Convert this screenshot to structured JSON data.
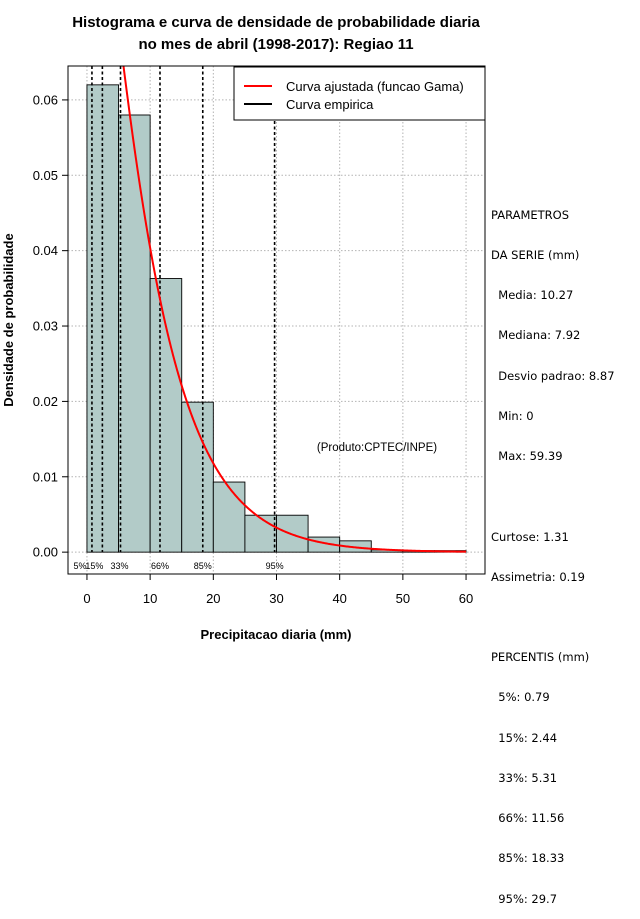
{
  "chart_data": {
    "type": "bar",
    "title_line1": "Histograma e curva de densidade de probabilidade diaria",
    "title_line2": "no mes de abril (1998-2017): Regiao 11",
    "xlabel": "Precipitacao diaria (mm)",
    "ylabel": "Densidade de probabilidade",
    "xlim": [
      -3,
      63
    ],
    "ylim": [
      -0.0029,
      0.0645
    ],
    "x_ticks": [
      0,
      10,
      20,
      30,
      40,
      50,
      60
    ],
    "x_tick_labels": [
      "0",
      "10",
      "20",
      "30",
      "40",
      "50",
      "60"
    ],
    "y_ticks": [
      0.0,
      0.01,
      0.02,
      0.03,
      0.04,
      0.05,
      0.06
    ],
    "y_tick_labels": [
      "0.00",
      "0.01",
      "0.02",
      "0.03",
      "0.04",
      "0.05",
      "0.06"
    ],
    "grid": true,
    "bins": [
      {
        "x0": 0,
        "x1": 5,
        "density": 0.062
      },
      {
        "x0": 5,
        "x1": 10,
        "density": 0.058
      },
      {
        "x0": 10,
        "x1": 15,
        "density": 0.0363
      },
      {
        "x0": 15,
        "x1": 20,
        "density": 0.0199
      },
      {
        "x0": 20,
        "x1": 25,
        "density": 0.0093
      },
      {
        "x0": 25,
        "x1": 30,
        "density": 0.0049
      },
      {
        "x0": 30,
        "x1": 35,
        "density": 0.0049
      },
      {
        "x0": 35,
        "x1": 40,
        "density": 0.002
      },
      {
        "x0": 40,
        "x1": 45,
        "density": 0.0015
      },
      {
        "x0": 45,
        "x1": 50,
        "density": 0.0003
      },
      {
        "x0": 50,
        "x1": 55,
        "density": 0.0002
      },
      {
        "x0": 55,
        "x1": 60,
        "density": 0.0002
      }
    ],
    "gamma_fit": {
      "shape": 1.2,
      "scale": 7.3,
      "x_min": 0.3,
      "x_max": 60
    },
    "percentiles": [
      {
        "label": "5%",
        "value": 0.79
      },
      {
        "label": "15%",
        "value": 2.44
      },
      {
        "label": "33%",
        "value": 5.31
      },
      {
        "label": "66%",
        "value": 11.56
      },
      {
        "label": "85%",
        "value": 18.33
      },
      {
        "label": "95%",
        "value": 29.7
      }
    ],
    "legend": {
      "position": "top-right",
      "entries": [
        {
          "label": "Curva ajustada (funcao Gama)",
          "color": "#ff0000"
        },
        {
          "label": "Curva empirica",
          "color": "#000000"
        }
      ]
    },
    "annotation": "(Produto:CPTEC/INPE)",
    "bar_fill": "#b2cbc8",
    "curve_color": "#ff0000"
  },
  "stats_panel": {
    "header1": "PARAMETROS",
    "header2": "DA SERIE (mm)",
    "media": "  Media: 10.27",
    "mediana": "  Mediana: 7.92",
    "desvio": "  Desvio padrao: 8.87",
    "min": "  Min: 0",
    "max": "  Max: 59.39",
    "curtose": "Curtose: 1.31",
    "assimetria": "Assimetria: 0.19",
    "percentis_header": "PERCENTIS (mm)",
    "p5": "  5%: 0.79",
    "p15": "  15%: 2.44",
    "p33": "  33%: 5.31",
    "p66": "  66%: 11.56",
    "p85": "  85%: 18.33",
    "p95": "  95%: 29.7"
  }
}
